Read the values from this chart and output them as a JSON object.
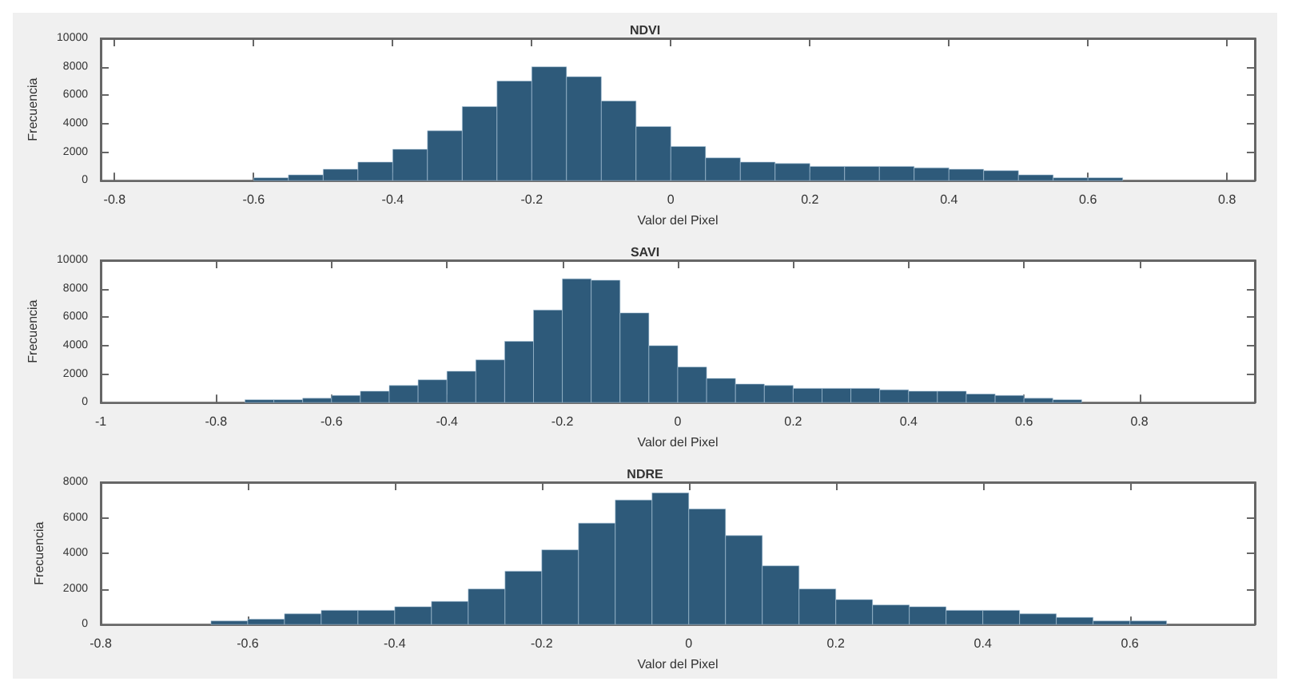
{
  "chart_data": [
    {
      "type": "histogram",
      "title": "NDVI",
      "xlabel": "Valor del Pixel",
      "ylabel": "Frecuencia",
      "color": "#2e5a7a",
      "xlim": [
        -0.82,
        0.84
      ],
      "xticks": [
        -0.8,
        -0.6,
        -0.4,
        -0.2,
        0,
        0.2,
        0.4,
        0.6,
        0.8
      ],
      "ylim": [
        0,
        10000
      ],
      "yticks": [
        0,
        2000,
        4000,
        6000,
        8000,
        10000
      ],
      "grid": false,
      "bins": [
        -0.6,
        -0.55,
        -0.5,
        -0.45,
        -0.4,
        -0.35,
        -0.3,
        -0.25,
        -0.2,
        -0.15,
        -0.1,
        -0.05,
        0,
        0.05,
        0.1,
        0.15,
        0.2,
        0.25,
        0.3,
        0.35,
        0.4,
        0.45,
        0.5,
        0.55,
        0.6,
        0.65
      ],
      "values": [
        200,
        400,
        800,
        1300,
        2200,
        3500,
        5200,
        7000,
        8000,
        7300,
        5600,
        3800,
        2400,
        1600,
        1300,
        1200,
        1000,
        1000,
        1000,
        900,
        800,
        700,
        400,
        200,
        200
      ]
    },
    {
      "type": "histogram",
      "title": "SAVI",
      "xlabel": "Valor del Pixel",
      "ylabel": "Frecuencia",
      "color": "#2e5a7a",
      "xlim": [
        -1,
        1
      ],
      "xticks": [
        -1,
        -0.8,
        -0.6,
        -0.4,
        -0.2,
        0,
        0.2,
        0.4,
        0.6,
        0.8
      ],
      "ylim": [
        0,
        10000
      ],
      "yticks": [
        0,
        2000,
        4000,
        6000,
        8000,
        10000
      ],
      "grid": false,
      "bins": [
        -0.75,
        -0.7,
        -0.65,
        -0.6,
        -0.55,
        -0.5,
        -0.45,
        -0.4,
        -0.35,
        -0.3,
        -0.25,
        -0.2,
        -0.15,
        -0.1,
        -0.05,
        0,
        0.05,
        0.1,
        0.15,
        0.2,
        0.25,
        0.3,
        0.35,
        0.4,
        0.45,
        0.5,
        0.55,
        0.6,
        0.65,
        0.7
      ],
      "values": [
        200,
        200,
        300,
        500,
        800,
        1200,
        1600,
        2200,
        3000,
        4300,
        6500,
        8700,
        8600,
        6300,
        4000,
        2500,
        1700,
        1300,
        1200,
        1000,
        1000,
        1000,
        900,
        800,
        800,
        600,
        500,
        300,
        200
      ]
    },
    {
      "type": "histogram",
      "title": "NDRE",
      "xlabel": "Valor del Pixel",
      "ylabel": "Frecuencia",
      "color": "#2e5a7a",
      "xlim": [
        -0.8,
        0.77
      ],
      "xticks": [
        -0.8,
        -0.6,
        -0.4,
        -0.2,
        0,
        0.2,
        0.4,
        0.6
      ],
      "ylim": [
        0,
        8000
      ],
      "yticks": [
        0,
        2000,
        4000,
        6000,
        8000
      ],
      "grid": false,
      "bins": [
        -0.65,
        -0.6,
        -0.55,
        -0.5,
        -0.45,
        -0.4,
        -0.35,
        -0.3,
        -0.25,
        -0.2,
        -0.15,
        -0.1,
        -0.05,
        0,
        0.05,
        0.1,
        0.15,
        0.2,
        0.25,
        0.3,
        0.35,
        0.4,
        0.45,
        0.5,
        0.55,
        0.6,
        0.65
      ],
      "values": [
        200,
        300,
        600,
        800,
        800,
        1000,
        1300,
        2000,
        3000,
        4200,
        5700,
        7000,
        7400,
        6500,
        5000,
        3300,
        2000,
        1400,
        1100,
        1000,
        800,
        800,
        600,
        400,
        200,
        200
      ]
    }
  ]
}
